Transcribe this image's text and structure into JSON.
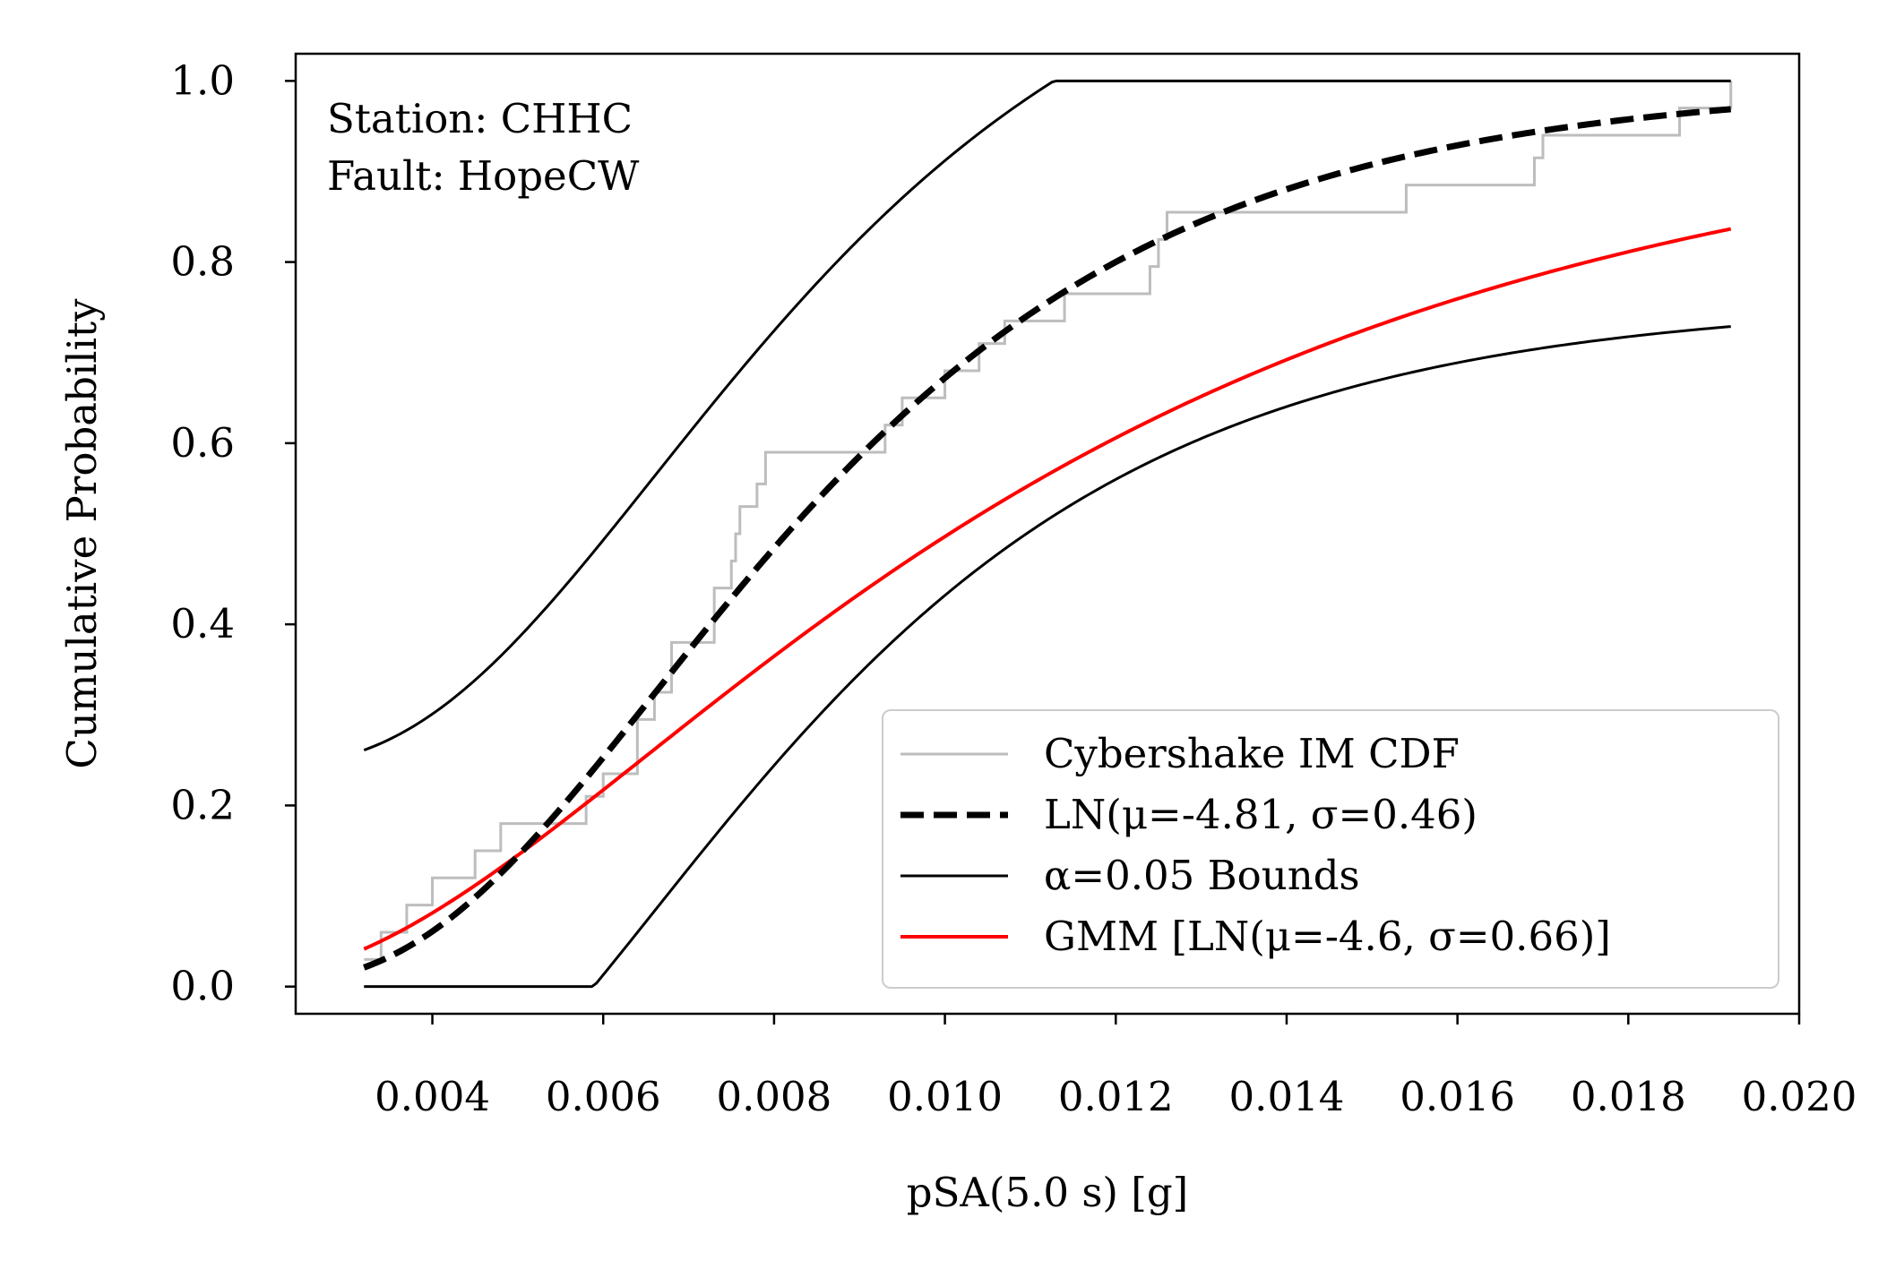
{
  "chart_data": {
    "type": "line",
    "xlabel": "pSA(5.0 s) [g]",
    "ylabel": "Cumulative Probability",
    "xlim": [
      0.0024,
      0.02
    ],
    "ylim": [
      -0.03,
      1.03
    ],
    "x_ticks": [
      0.004,
      0.006,
      0.008,
      0.01,
      0.012,
      0.014,
      0.016,
      0.018,
      0.02
    ],
    "x_tick_labels": [
      "0.004",
      "0.006",
      "0.008",
      "0.010",
      "0.012",
      "0.014",
      "0.016",
      "0.018",
      "0.020"
    ],
    "y_ticks": [
      0.0,
      0.2,
      0.4,
      0.6,
      0.8,
      1.0
    ],
    "y_tick_labels": [
      "0.0",
      "0.2",
      "0.4",
      "0.6",
      "0.8",
      "1.0"
    ],
    "grid": false,
    "legend_position": "bottom-right",
    "annotations": [
      "Station: CHHC",
      "Fault: HopeCW"
    ],
    "x_range": [
      0.0032,
      0.0192
    ],
    "alpha_band": 0.24,
    "series": [
      {
        "name": "Cybershake IM CDF",
        "kind": "step",
        "color": "#bdbdbd",
        "points": [
          [
            0.0032,
            0.03
          ],
          [
            0.0034,
            0.03
          ],
          [
            0.0034,
            0.06
          ],
          [
            0.0037,
            0.06
          ],
          [
            0.0037,
            0.09
          ],
          [
            0.004,
            0.09
          ],
          [
            0.004,
            0.12
          ],
          [
            0.0045,
            0.12
          ],
          [
            0.0045,
            0.15
          ],
          [
            0.0048,
            0.15
          ],
          [
            0.0048,
            0.18
          ],
          [
            0.0058,
            0.18
          ],
          [
            0.0058,
            0.21
          ],
          [
            0.006,
            0.21
          ],
          [
            0.006,
            0.235
          ],
          [
            0.0064,
            0.235
          ],
          [
            0.0064,
            0.295
          ],
          [
            0.0066,
            0.295
          ],
          [
            0.0066,
            0.325
          ],
          [
            0.0068,
            0.325
          ],
          [
            0.0068,
            0.38
          ],
          [
            0.0073,
            0.38
          ],
          [
            0.0073,
            0.44
          ],
          [
            0.0075,
            0.44
          ],
          [
            0.0075,
            0.47
          ],
          [
            0.00755,
            0.47
          ],
          [
            0.00755,
            0.5
          ],
          [
            0.0076,
            0.5
          ],
          [
            0.0076,
            0.53
          ],
          [
            0.0078,
            0.53
          ],
          [
            0.0078,
            0.555
          ],
          [
            0.0079,
            0.555
          ],
          [
            0.0079,
            0.59
          ],
          [
            0.0093,
            0.59
          ],
          [
            0.0093,
            0.62
          ],
          [
            0.0095,
            0.62
          ],
          [
            0.0095,
            0.65
          ],
          [
            0.01,
            0.65
          ],
          [
            0.01,
            0.68
          ],
          [
            0.0104,
            0.68
          ],
          [
            0.0104,
            0.71
          ],
          [
            0.0107,
            0.71
          ],
          [
            0.0107,
            0.735
          ],
          [
            0.0114,
            0.735
          ],
          [
            0.0114,
            0.765
          ],
          [
            0.0124,
            0.765
          ],
          [
            0.0124,
            0.795
          ],
          [
            0.0125,
            0.795
          ],
          [
            0.0125,
            0.825
          ],
          [
            0.0126,
            0.825
          ],
          [
            0.0126,
            0.855
          ],
          [
            0.0154,
            0.855
          ],
          [
            0.0154,
            0.885
          ],
          [
            0.0169,
            0.885
          ],
          [
            0.0169,
            0.915
          ],
          [
            0.017,
            0.915
          ],
          [
            0.017,
            0.94
          ],
          [
            0.0186,
            0.94
          ],
          [
            0.0186,
            0.97
          ],
          [
            0.0192,
            0.97
          ],
          [
            0.0192,
            1.0
          ]
        ]
      },
      {
        "name": "LN(μ=-4.81, σ=0.46)",
        "kind": "lognormal-cdf",
        "mu": -4.81,
        "sigma": 0.46,
        "color": "#000000",
        "dashed": true
      },
      {
        "name": "α=0.05 Bounds",
        "kind": "bounds",
        "color": "#000000"
      },
      {
        "name": "GMM [LN(μ=-4.6, σ=0.66)]",
        "kind": "lognormal-cdf",
        "mu": -4.6,
        "sigma": 0.66,
        "color": "#ff0000"
      }
    ]
  }
}
